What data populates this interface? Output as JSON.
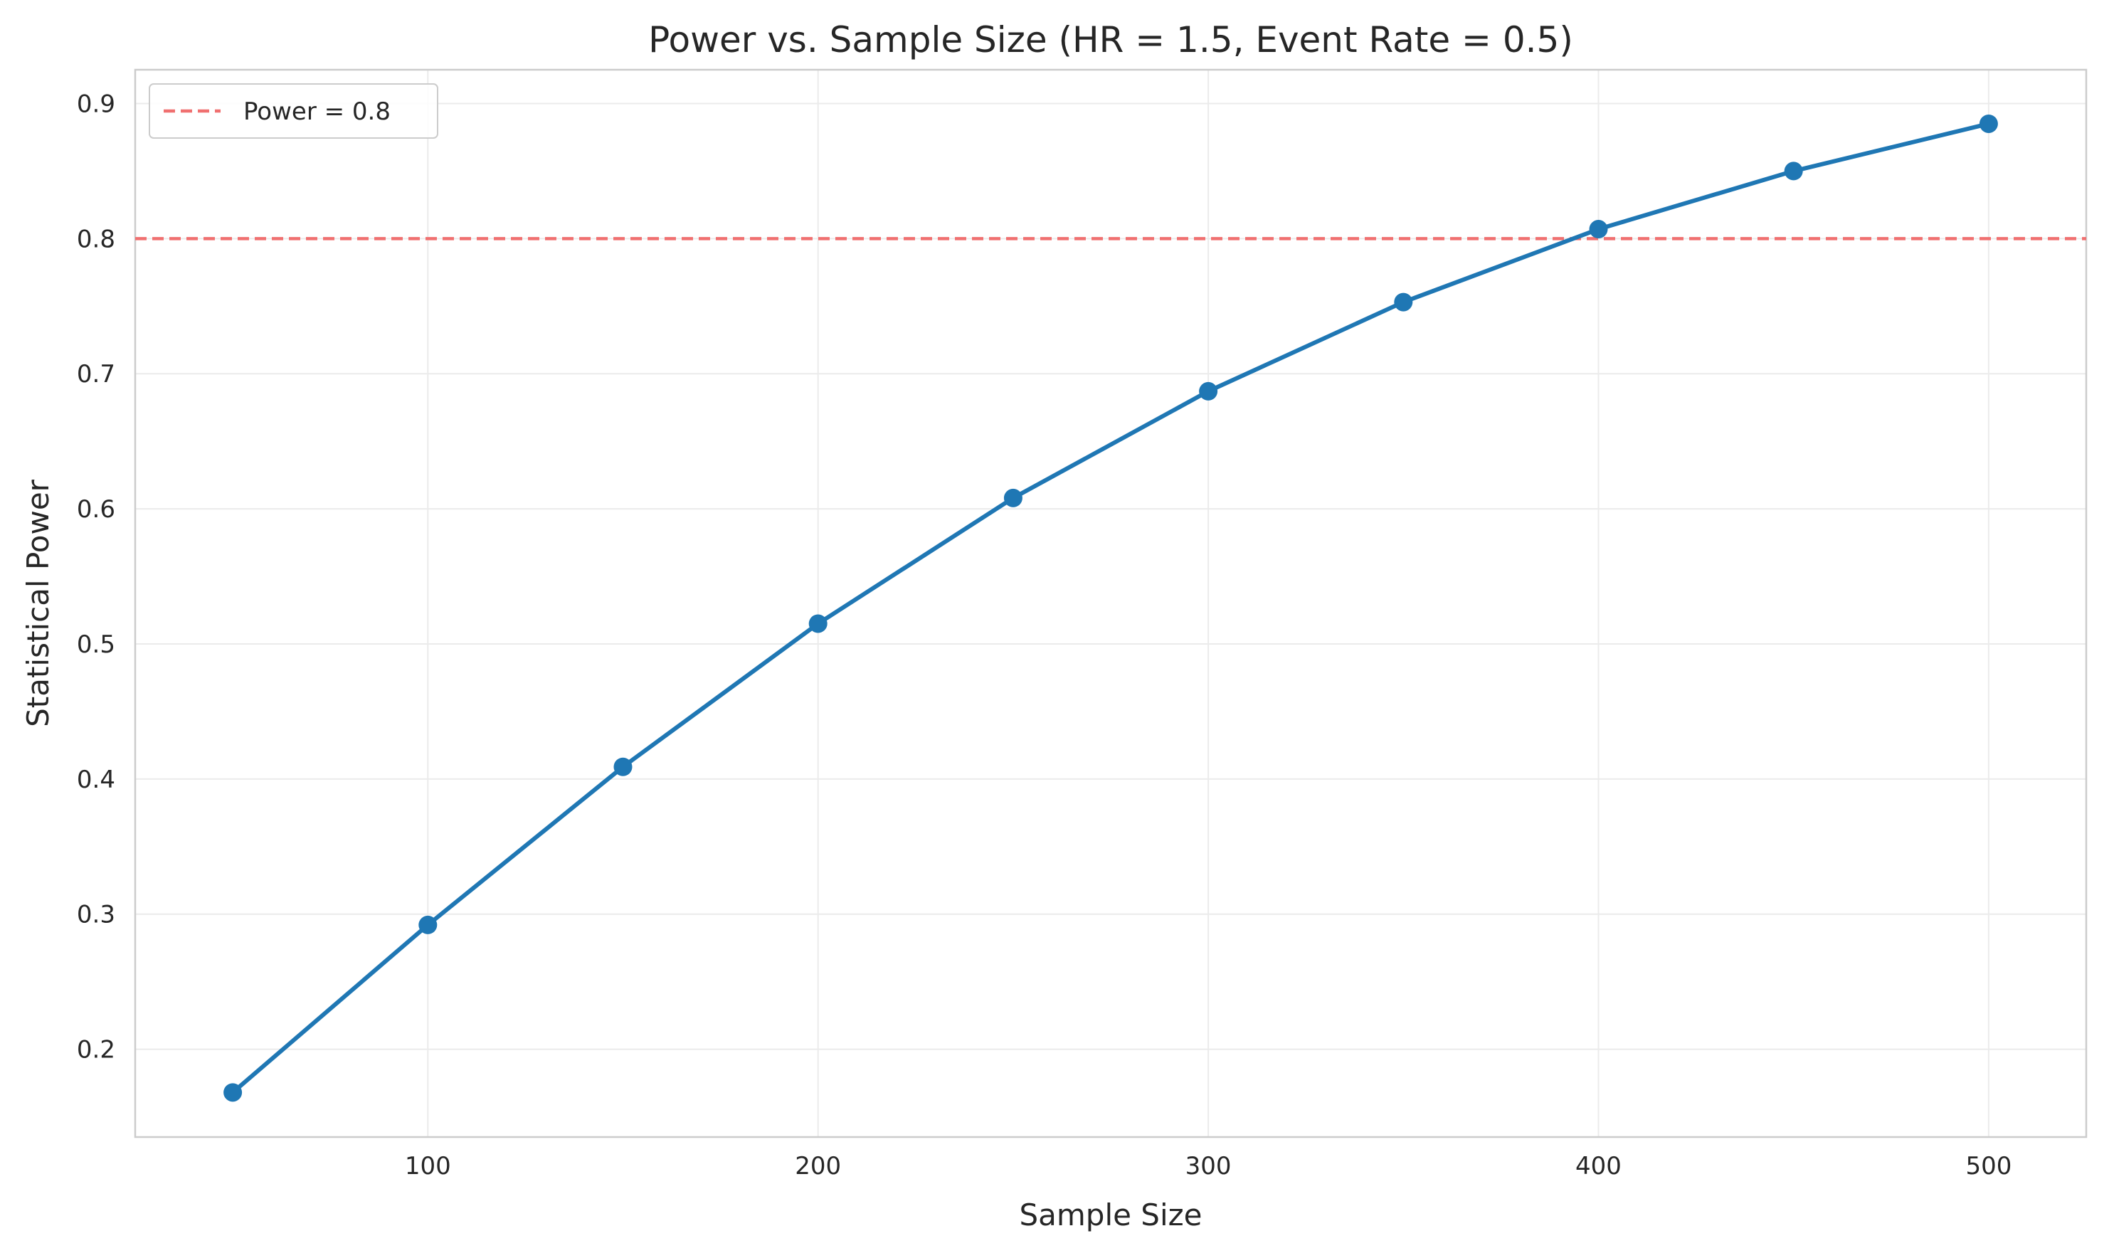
{
  "chart_data": {
    "type": "line",
    "title": "Power vs. Sample Size (HR = 1.5, Event Rate = 0.5)",
    "xlabel": "Sample Size",
    "ylabel": "Statistical Power",
    "xlim": [
      25,
      525
    ],
    "ylim": [
      0.135,
      0.925
    ],
    "x_ticks": [
      100,
      200,
      300,
      400,
      500
    ],
    "y_ticks": [
      0.2,
      0.3,
      0.4,
      0.5,
      0.6,
      0.7,
      0.8,
      0.9
    ],
    "x_tick_labels": [
      "100",
      "200",
      "300",
      "400",
      "500"
    ],
    "y_tick_labels": [
      "0.2",
      "0.3",
      "0.4",
      "0.5",
      "0.6",
      "0.7",
      "0.8",
      "0.9"
    ],
    "grid": true,
    "legend_position": "top-left",
    "series": [
      {
        "x": [
          50,
          100,
          150,
          200,
          250,
          300,
          350,
          400,
          450,
          500
        ],
        "values": [
          0.168,
          0.292,
          0.409,
          0.515,
          0.608,
          0.687,
          0.753,
          0.807,
          0.85,
          0.885
        ],
        "color": "#1f77b4"
      }
    ],
    "reference_lines": [
      {
        "name": "Power = 0.8",
        "y": 0.8,
        "color": "#f07070",
        "style": "dashed"
      }
    ]
  }
}
